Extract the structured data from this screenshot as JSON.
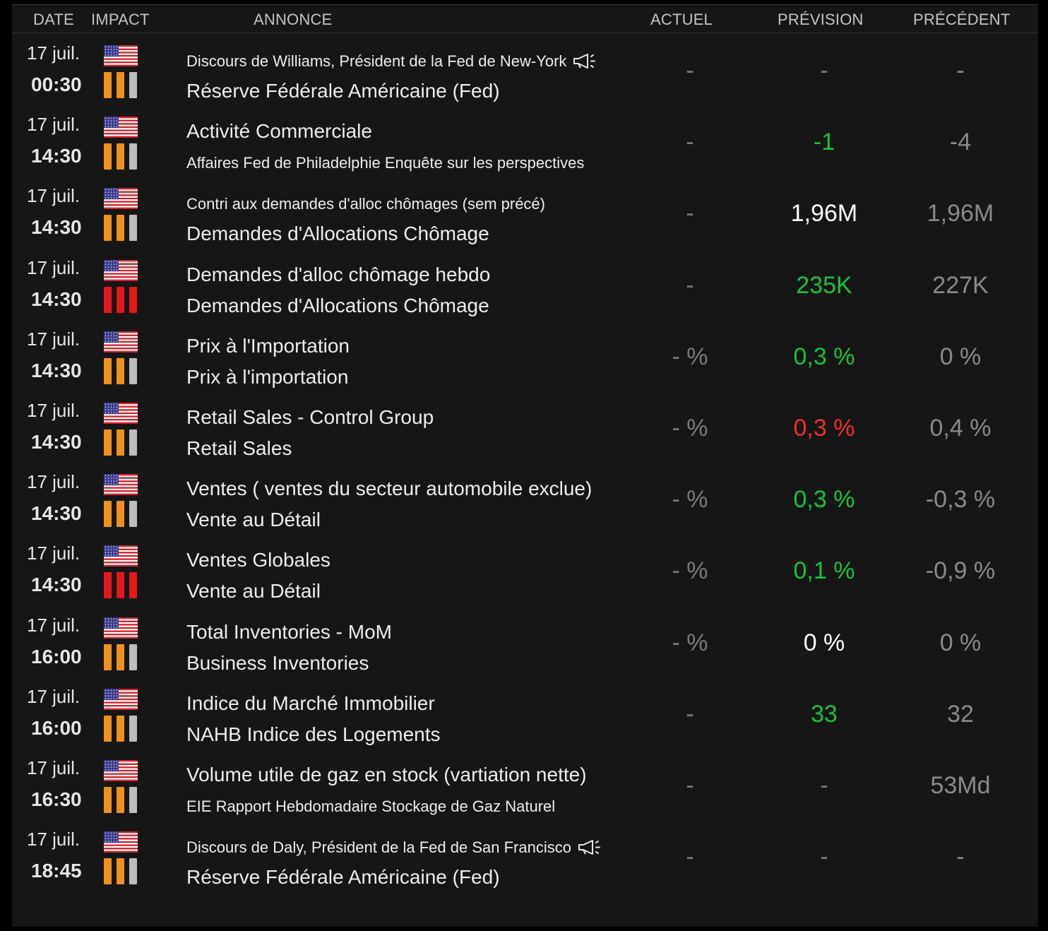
{
  "colors": {
    "orange": "#f0901e",
    "red": "#e5171b",
    "gray_bar": "#bdbdbd",
    "green": "#19c23c",
    "negative": "#ef2e2e"
  },
  "header": {
    "date": "DATE",
    "impact": "IMPACT",
    "annonce": "ANNONCE",
    "actuel": "ACTUEL",
    "prevision": "PRÉVISION",
    "precedent": "PRÉCÉDENT"
  },
  "rows": [
    {
      "date": "17 juil.",
      "time": "00:30",
      "country": "us-flag",
      "impact": 2,
      "line1": "Discours de Williams, Président de la Fed de New-York",
      "line2": "Réserve Fédérale Américaine (Fed)",
      "speech": true,
      "small1": true,
      "small2": false,
      "actuel": "-",
      "prevision": "-",
      "prevision_color": "gray",
      "precedent": "-"
    },
    {
      "date": "17 juil.",
      "time": "14:30",
      "country": "us-flag",
      "impact": 2,
      "line1": "Activité Commerciale",
      "line2": "Affaires Fed de Philadelphie Enquête sur les perspectives",
      "speech": false,
      "small1": false,
      "small2": true,
      "actuel": "-",
      "prevision": "-1",
      "prevision_color": "green",
      "precedent": "-4"
    },
    {
      "date": "17 juil.",
      "time": "14:30",
      "country": "us-flag",
      "impact": 2,
      "line1": "Contri aux demandes d'alloc chômages (sem précé)",
      "line2": "Demandes d'Allocations Chômage",
      "speech": false,
      "small1": true,
      "small2": false,
      "actuel": "-",
      "prevision": "1,96M",
      "prevision_color": "white",
      "precedent": "1,96M"
    },
    {
      "date": "17 juil.",
      "time": "14:30",
      "country": "us-flag",
      "impact": 3,
      "line1": "Demandes d'alloc chômage hebdo",
      "line2": "Demandes d'Allocations Chômage",
      "speech": false,
      "small1": false,
      "small2": false,
      "actuel": "-",
      "prevision": "235K",
      "prevision_color": "green",
      "precedent": "227K"
    },
    {
      "date": "17 juil.",
      "time": "14:30",
      "country": "us-flag",
      "impact": 2,
      "line1": "Prix à l'Importation",
      "line2": "Prix à l'importation",
      "speech": false,
      "small1": false,
      "small2": false,
      "actuel": "- %",
      "prevision": "0,3 %",
      "prevision_color": "green",
      "precedent": "0 %"
    },
    {
      "date": "17 juil.",
      "time": "14:30",
      "country": "us-flag",
      "impact": 2,
      "line1": "Retail Sales - Control Group",
      "line2": "Retail Sales",
      "speech": false,
      "small1": false,
      "small2": false,
      "actuel": "- %",
      "prevision": "0,3 %",
      "prevision_color": "red",
      "precedent": "0,4 %"
    },
    {
      "date": "17 juil.",
      "time": "14:30",
      "country": "us-flag",
      "impact": 2,
      "line1": "Ventes ( ventes du secteur automobile exclue)",
      "line2": "Vente au Détail",
      "speech": false,
      "small1": false,
      "small2": false,
      "actuel": "- %",
      "prevision": "0,3 %",
      "prevision_color": "green",
      "precedent": "-0,3 %"
    },
    {
      "date": "17 juil.",
      "time": "14:30",
      "country": "us-flag",
      "impact": 3,
      "line1": "Ventes Globales",
      "line2": "Vente au Détail",
      "speech": false,
      "small1": false,
      "small2": false,
      "actuel": "- %",
      "prevision": "0,1 %",
      "prevision_color": "green",
      "precedent": "-0,9 %"
    },
    {
      "date": "17 juil.",
      "time": "16:00",
      "country": "us-flag",
      "impact": 2,
      "line1": "Total Inventories - MoM",
      "line2": "Business Inventories",
      "speech": false,
      "small1": false,
      "small2": false,
      "actuel": "- %",
      "prevision": "0 %",
      "prevision_color": "white",
      "precedent": "0 %"
    },
    {
      "date": "17 juil.",
      "time": "16:00",
      "country": "us-flag",
      "impact": 2,
      "line1": "Indice du Marché Immobilier",
      "line2": "NAHB Indice des Logements",
      "speech": false,
      "small1": false,
      "small2": false,
      "actuel": "-",
      "prevision": "33",
      "prevision_color": "green",
      "precedent": "32"
    },
    {
      "date": "17 juil.",
      "time": "16:30",
      "country": "us-flag",
      "impact": 2,
      "line1": "Volume utile de gaz en stock (vartiation nette)",
      "line2": "EIE Rapport Hebdomadaire Stockage de Gaz Naturel",
      "speech": false,
      "small1": false,
      "small2": true,
      "actuel": "-",
      "prevision": "-",
      "prevision_color": "gray",
      "precedent": "53Md"
    },
    {
      "date": "17 juil.",
      "time": "18:45",
      "country": "us-flag",
      "impact": 2,
      "line1": "Discours de Daly, Président de la Fed de San Francisco",
      "line2": "Réserve Fédérale Américaine (Fed)",
      "speech": true,
      "small1": true,
      "small2": false,
      "actuel": "-",
      "prevision": "-",
      "prevision_color": "gray",
      "precedent": "-"
    }
  ]
}
